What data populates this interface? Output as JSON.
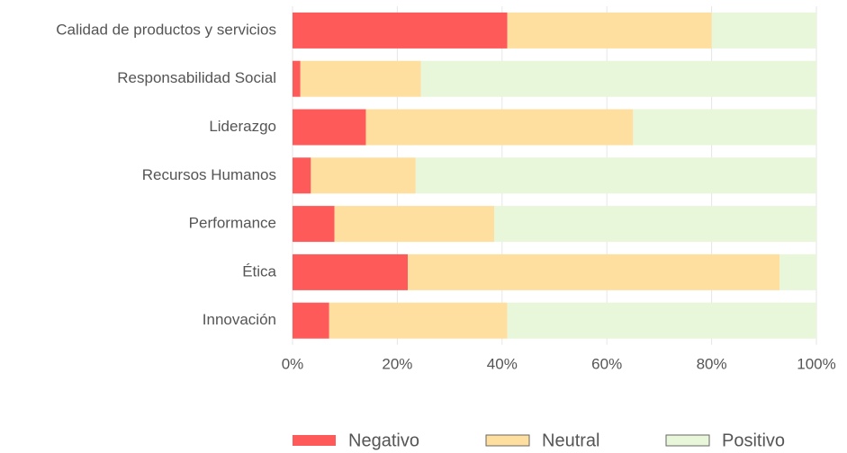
{
  "chart_data": {
    "type": "stacked-bar-horizontal",
    "categories": [
      "Calidad de productos y servicios",
      "Responsabilidad Social",
      "Liderazgo",
      "Recursos Humanos",
      "Performance",
      "Ética",
      "Innovación"
    ],
    "series": [
      {
        "name": "Negativo",
        "color": "#ff5a5a",
        "values": [
          41,
          1.5,
          14,
          3.5,
          8,
          22,
          7
        ]
      },
      {
        "name": "Neutral",
        "color": "#fedf9f",
        "values": [
          39,
          23,
          51,
          20,
          30.5,
          71,
          34
        ]
      },
      {
        "name": "Positivo",
        "color": "#e8f6da",
        "values": [
          20,
          75.5,
          35,
          76.5,
          61.5,
          7,
          59
        ]
      }
    ],
    "xlim": [
      0,
      100
    ],
    "xticks": [
      {
        "value": 0,
        "label": "0%"
      },
      {
        "value": 20,
        "label": "20%"
      },
      {
        "value": 40,
        "label": "40%"
      },
      {
        "value": 60,
        "label": "60%"
      },
      {
        "value": 80,
        "label": "80%"
      },
      {
        "value": 100,
        "label": "100%"
      }
    ],
    "grid": true,
    "legend": "bottom"
  }
}
